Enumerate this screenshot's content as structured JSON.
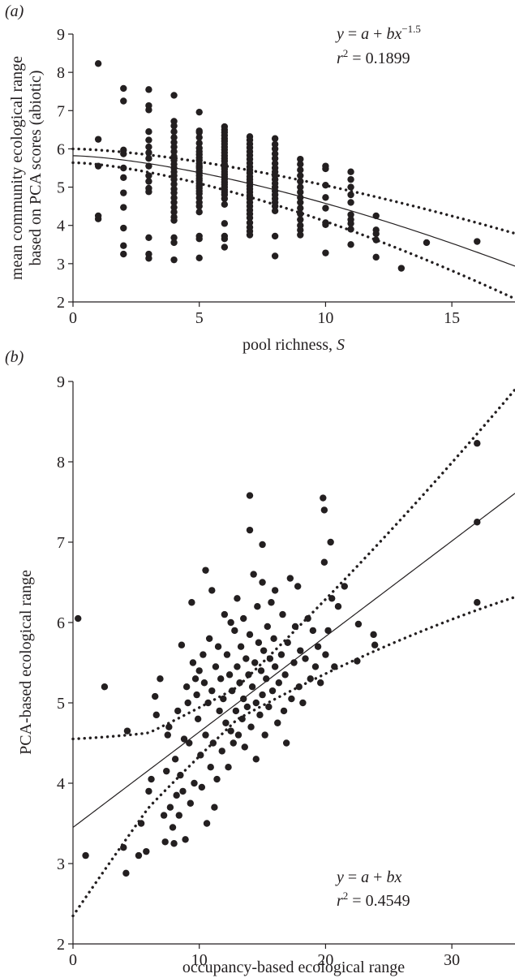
{
  "chart_data": [
    {
      "panel": "(a)",
      "type": "scatter",
      "xlabel_prefix": "pool richness, ",
      "xlabel_var": "S",
      "ylabel_line1": "mean community ecological range",
      "ylabel_line2": "based on PCA scores (abiotic)",
      "xlim": [
        0,
        17.5
      ],
      "ylim": [
        2,
        9
      ],
      "xticks": [
        0,
        5,
        10,
        15
      ],
      "yticks": [
        2,
        3,
        4,
        5,
        6,
        7,
        8,
        9
      ],
      "equation": {
        "y": "y",
        "eq": " = ",
        "a": "a",
        "plus": " + ",
        "bx": "bx",
        "exp": "−1.5"
      },
      "r2": {
        "r": "r",
        "sup": "2",
        "val": " = 0.1899"
      },
      "points": [
        [
          1,
          8.23
        ],
        [
          1,
          6.25
        ],
        [
          1,
          5.55
        ],
        [
          1,
          4.25
        ],
        [
          1,
          4.17
        ],
        [
          2,
          7.58
        ],
        [
          2,
          7.25
        ],
        [
          2,
          5.97
        ],
        [
          2,
          5.87
        ],
        [
          2,
          5.5
        ],
        [
          2,
          5.25
        ],
        [
          2,
          4.85
        ],
        [
          2,
          4.47
        ],
        [
          2,
          3.93
        ],
        [
          2,
          3.47
        ],
        [
          2,
          3.25
        ],
        [
          3,
          7.55
        ],
        [
          3,
          7.13
        ],
        [
          3,
          7.02
        ],
        [
          3,
          6.45
        ],
        [
          3,
          6.23
        ],
        [
          3,
          6.05
        ],
        [
          3,
          5.9
        ],
        [
          3,
          5.75
        ],
        [
          3,
          5.55
        ],
        [
          3,
          5.3
        ],
        [
          3,
          5.15
        ],
        [
          3,
          4.97
        ],
        [
          3,
          4.88
        ],
        [
          3,
          3.68
        ],
        [
          3,
          3.25
        ],
        [
          3,
          3.14
        ],
        [
          4,
          7.4
        ],
        [
          4,
          6.72
        ],
        [
          4,
          6.6
        ],
        [
          4,
          6.45
        ],
        [
          4,
          6.3
        ],
        [
          4,
          6.17
        ],
        [
          4,
          6.05
        ],
        [
          4,
          5.93
        ],
        [
          4,
          5.8
        ],
        [
          4,
          5.7
        ],
        [
          4,
          5.6
        ],
        [
          4,
          5.5
        ],
        [
          4,
          5.4
        ],
        [
          4,
          5.3
        ],
        [
          4,
          5.2
        ],
        [
          4,
          5.08
        ],
        [
          4,
          4.95
        ],
        [
          4,
          4.85
        ],
        [
          4,
          4.72
        ],
        [
          4,
          4.6
        ],
        [
          4,
          4.47
        ],
        [
          4,
          4.35
        ],
        [
          4,
          4.22
        ],
        [
          4,
          4.13
        ],
        [
          4,
          3.68
        ],
        [
          4,
          3.55
        ],
        [
          4,
          3.1
        ],
        [
          5,
          6.96
        ],
        [
          5,
          6.47
        ],
        [
          5,
          6.43
        ],
        [
          5,
          6.3
        ],
        [
          5,
          6.15
        ],
        [
          5,
          6.02
        ],
        [
          5,
          5.93
        ],
        [
          5,
          5.85
        ],
        [
          5,
          5.77
        ],
        [
          5,
          5.7
        ],
        [
          5,
          5.62
        ],
        [
          5,
          5.55
        ],
        [
          5,
          5.5
        ],
        [
          5,
          5.43
        ],
        [
          5,
          5.37
        ],
        [
          5,
          5.3
        ],
        [
          5,
          5.23
        ],
        [
          5,
          5.17
        ],
        [
          5,
          5.1
        ],
        [
          5,
          5.03
        ],
        [
          5,
          4.97
        ],
        [
          5,
          4.9
        ],
        [
          5,
          4.83
        ],
        [
          5,
          4.72
        ],
        [
          5,
          4.6
        ],
        [
          5,
          4.5
        ],
        [
          5,
          4.35
        ],
        [
          5,
          3.72
        ],
        [
          5,
          3.65
        ],
        [
          5,
          3.15
        ],
        [
          6,
          6.58
        ],
        [
          6,
          6.5
        ],
        [
          6,
          6.43
        ],
        [
          6,
          6.35
        ],
        [
          6,
          6.27
        ],
        [
          6,
          6.2
        ],
        [
          6,
          6.13
        ],
        [
          6,
          6.05
        ],
        [
          6,
          5.98
        ],
        [
          6,
          5.9
        ],
        [
          6,
          5.82
        ],
        [
          6,
          5.75
        ],
        [
          6,
          5.68
        ],
        [
          6,
          5.6
        ],
        [
          6,
          5.53
        ],
        [
          6,
          5.47
        ],
        [
          6,
          5.4
        ],
        [
          6,
          5.33
        ],
        [
          6,
          5.27
        ],
        [
          6,
          5.2
        ],
        [
          6,
          5.13
        ],
        [
          6,
          5.07
        ],
        [
          6,
          5.0
        ],
        [
          6,
          4.93
        ],
        [
          6,
          4.87
        ],
        [
          6,
          4.8
        ],
        [
          6,
          4.7
        ],
        [
          6,
          4.55
        ],
        [
          6,
          4.05
        ],
        [
          6,
          3.72
        ],
        [
          6,
          3.65
        ],
        [
          6,
          3.43
        ],
        [
          7,
          6.32
        ],
        [
          7,
          6.23
        ],
        [
          7,
          6.13
        ],
        [
          7,
          6.03
        ],
        [
          7,
          5.93
        ],
        [
          7,
          5.83
        ],
        [
          7,
          5.73
        ],
        [
          7,
          5.63
        ],
        [
          7,
          5.53
        ],
        [
          7,
          5.45
        ],
        [
          7,
          5.37
        ],
        [
          7,
          5.28
        ],
        [
          7,
          5.2
        ],
        [
          7,
          5.12
        ],
        [
          7,
          5.03
        ],
        [
          7,
          4.95
        ],
        [
          7,
          4.87
        ],
        [
          7,
          4.78
        ],
        [
          7,
          4.7
        ],
        [
          7,
          4.6
        ],
        [
          7,
          4.5
        ],
        [
          7,
          4.4
        ],
        [
          7,
          4.3
        ],
        [
          7,
          4.2
        ],
        [
          7,
          4.07
        ],
        [
          7,
          3.95
        ],
        [
          7,
          3.85
        ],
        [
          7,
          3.75
        ],
        [
          8,
          6.27
        ],
        [
          8,
          6.12
        ],
        [
          8,
          6.0
        ],
        [
          8,
          5.87
        ],
        [
          8,
          5.75
        ],
        [
          8,
          5.62
        ],
        [
          8,
          5.5
        ],
        [
          8,
          5.4
        ],
        [
          8,
          5.3
        ],
        [
          8,
          5.2
        ],
        [
          8,
          5.1
        ],
        [
          8,
          5.0
        ],
        [
          8,
          4.9
        ],
        [
          8,
          4.8
        ],
        [
          8,
          4.7
        ],
        [
          8,
          4.6
        ],
        [
          8,
          4.5
        ],
        [
          8,
          4.38
        ],
        [
          8,
          3.72
        ],
        [
          8,
          3.2
        ],
        [
          9,
          5.73
        ],
        [
          9,
          5.6
        ],
        [
          9,
          5.45
        ],
        [
          9,
          5.3
        ],
        [
          9,
          5.15
        ],
        [
          9,
          5.0
        ],
        [
          9,
          4.87
        ],
        [
          9,
          4.73
        ],
        [
          9,
          4.6
        ],
        [
          9,
          4.45
        ],
        [
          9,
          4.3
        ],
        [
          9,
          4.15
        ],
        [
          9,
          4.0
        ],
        [
          9,
          3.88
        ],
        [
          9,
          3.75
        ],
        [
          10,
          5.55
        ],
        [
          10,
          5.48
        ],
        [
          10,
          5.05
        ],
        [
          10,
          4.73
        ],
        [
          10,
          4.45
        ],
        [
          10,
          4.07
        ],
        [
          10,
          4.02
        ],
        [
          10,
          3.28
        ],
        [
          11,
          5.4
        ],
        [
          11,
          5.2
        ],
        [
          11,
          5.0
        ],
        [
          11,
          4.8
        ],
        [
          11,
          4.6
        ],
        [
          11,
          4.28
        ],
        [
          11,
          4.15
        ],
        [
          11,
          4.05
        ],
        [
          11,
          3.9
        ],
        [
          11,
          3.5
        ],
        [
          12,
          4.25
        ],
        [
          12,
          3.88
        ],
        [
          12,
          3.78
        ],
        [
          12,
          3.62
        ],
        [
          12,
          3.17
        ],
        [
          13,
          2.88
        ],
        [
          14,
          3.55
        ],
        [
          16,
          3.58
        ]
      ]
    },
    {
      "panel": "(b)",
      "type": "scatter",
      "xlabel": "occupancy-based ecological range",
      "ylabel": "PCA-based ecological range",
      "xlim": [
        0,
        35
      ],
      "ylim": [
        2,
        9
      ],
      "xticks": [
        0,
        10,
        20,
        30
      ],
      "yticks": [
        2,
        3,
        4,
        5,
        6,
        7,
        8,
        9
      ],
      "equation": {
        "y": "y",
        "eq": " = ",
        "a": "a",
        "plus": " + ",
        "bx": "bx"
      },
      "r2": {
        "r": "r",
        "sup": "2",
        "val": " = 0.4549"
      },
      "points": [
        [
          0.4,
          6.05
        ],
        [
          1,
          3.1
        ],
        [
          2.5,
          5.2
        ],
        [
          4,
          3.2
        ],
        [
          4.2,
          2.88
        ],
        [
          4.3,
          4.65
        ],
        [
          5.2,
          3.1
        ],
        [
          5.4,
          3.5
        ],
        [
          5.8,
          3.15
        ],
        [
          6,
          3.9
        ],
        [
          6.2,
          4.05
        ],
        [
          6.5,
          5.08
        ],
        [
          6.6,
          4.85
        ],
        [
          6.9,
          5.3
        ],
        [
          7.2,
          3.6
        ],
        [
          7.3,
          3.27
        ],
        [
          7.4,
          4.15
        ],
        [
          7.5,
          4.6
        ],
        [
          7.6,
          4.7
        ],
        [
          7.7,
          3.7
        ],
        [
          7.9,
          3.45
        ],
        [
          8,
          3.25
        ],
        [
          8.1,
          4.3
        ],
        [
          8.2,
          3.85
        ],
        [
          8.3,
          4.9
        ],
        [
          8.4,
          3.6
        ],
        [
          8.5,
          4.1
        ],
        [
          8.6,
          5.72
        ],
        [
          8.7,
          3.9
        ],
        [
          8.8,
          4.55
        ],
        [
          8.9,
          3.3
        ],
        [
          9,
          5.2
        ],
        [
          9.1,
          5.0
        ],
        [
          9.2,
          4.5
        ],
        [
          9.3,
          3.75
        ],
        [
          9.4,
          6.25
        ],
        [
          9.5,
          5.5
        ],
        [
          9.6,
          4.0
        ],
        [
          9.7,
          5.3
        ],
        [
          9.8,
          5.1
        ],
        [
          9.9,
          4.8
        ],
        [
          10,
          5.4
        ],
        [
          10.1,
          4.35
        ],
        [
          10.2,
          3.95
        ],
        [
          10.3,
          5.6
        ],
        [
          10.4,
          5.25
        ],
        [
          10.5,
          6.65
        ],
        [
          10.5,
          4.6
        ],
        [
          10.6,
          3.5
        ],
        [
          10.7,
          5.0
        ],
        [
          10.8,
          5.8
        ],
        [
          10.9,
          4.2
        ],
        [
          11,
          6.4
        ],
        [
          11,
          5.15
        ],
        [
          11.1,
          4.5
        ],
        [
          11.2,
          3.7
        ],
        [
          11.3,
          5.45
        ],
        [
          11.4,
          4.05
        ],
        [
          11.5,
          5.7
        ],
        [
          11.6,
          4.9
        ],
        [
          11.7,
          5.3
        ],
        [
          11.8,
          4.4
        ],
        [
          11.9,
          5.05
        ],
        [
          12,
          6.1
        ],
        [
          12.1,
          4.75
        ],
        [
          12.2,
          5.6
        ],
        [
          12.3,
          4.2
        ],
        [
          12.4,
          5.35
        ],
        [
          12.5,
          6.0
        ],
        [
          12.5,
          4.65
        ],
        [
          12.6,
          5.15
        ],
        [
          12.7,
          4.5
        ],
        [
          12.8,
          5.9
        ],
        [
          12.9,
          4.9
        ],
        [
          13,
          5.45
        ],
        [
          13,
          6.3
        ],
        [
          13.1,
          4.6
        ],
        [
          13.2,
          5.25
        ],
        [
          13.3,
          5.7
        ],
        [
          13.4,
          4.8
        ],
        [
          13.5,
          5.05
        ],
        [
          13.5,
          6.05
        ],
        [
          13.6,
          4.45
        ],
        [
          13.7,
          5.55
        ],
        [
          13.8,
          4.95
        ],
        [
          13.9,
          5.35
        ],
        [
          14,
          7.58
        ],
        [
          14,
          7.15
        ],
        [
          14,
          5.85
        ],
        [
          14.1,
          4.7
        ],
        [
          14.2,
          5.2
        ],
        [
          14.3,
          6.6
        ],
        [
          14.4,
          5.5
        ],
        [
          14.5,
          4.3
        ],
        [
          14.5,
          5.0
        ],
        [
          14.6,
          6.2
        ],
        [
          14.7,
          5.75
        ],
        [
          14.8,
          4.85
        ],
        [
          14.9,
          5.4
        ],
        [
          15,
          6.97
        ],
        [
          15,
          6.5
        ],
        [
          15,
          5.1
        ],
        [
          15.1,
          5.65
        ],
        [
          15.2,
          4.6
        ],
        [
          15.3,
          5.3
        ],
        [
          15.4,
          5.95
        ],
        [
          15.5,
          4.95
        ],
        [
          15.6,
          5.55
        ],
        [
          15.7,
          6.25
        ],
        [
          15.8,
          5.15
        ],
        [
          15.9,
          5.8
        ],
        [
          16,
          5.45
        ],
        [
          16,
          6.4
        ],
        [
          16.2,
          4.75
        ],
        [
          16.3,
          5.25
        ],
        [
          16.5,
          5.6
        ],
        [
          16.6,
          6.1
        ],
        [
          16.7,
          4.9
        ],
        [
          16.8,
          5.35
        ],
        [
          16.9,
          4.5
        ],
        [
          17,
          5.75
        ],
        [
          17.2,
          6.55
        ],
        [
          17.3,
          5.05
        ],
        [
          17.5,
          5.5
        ],
        [
          17.6,
          5.95
        ],
        [
          17.8,
          6.45
        ],
        [
          17.9,
          5.2
        ],
        [
          18,
          5.65
        ],
        [
          18.2,
          5.0
        ],
        [
          18.4,
          5.55
        ],
        [
          18.6,
          6.05
        ],
        [
          18.8,
          5.3
        ],
        [
          19,
          5.9
        ],
        [
          19.2,
          5.45
        ],
        [
          19.4,
          5.7
        ],
        [
          19.6,
          5.25
        ],
        [
          19.8,
          7.55
        ],
        [
          19.9,
          7.4
        ],
        [
          19.9,
          6.75
        ],
        [
          20,
          5.6
        ],
        [
          20.2,
          5.9
        ],
        [
          20.4,
          7.0
        ],
        [
          20.5,
          6.3
        ],
        [
          20.7,
          5.45
        ],
        [
          21,
          6.2
        ],
        [
          21.5,
          6.45
        ],
        [
          22.5,
          5.52
        ],
        [
          22.6,
          5.98
        ],
        [
          23.8,
          5.85
        ],
        [
          23.9,
          5.72
        ],
        [
          32,
          8.23
        ],
        [
          32,
          7.25
        ],
        [
          32,
          6.25
        ]
      ]
    }
  ]
}
